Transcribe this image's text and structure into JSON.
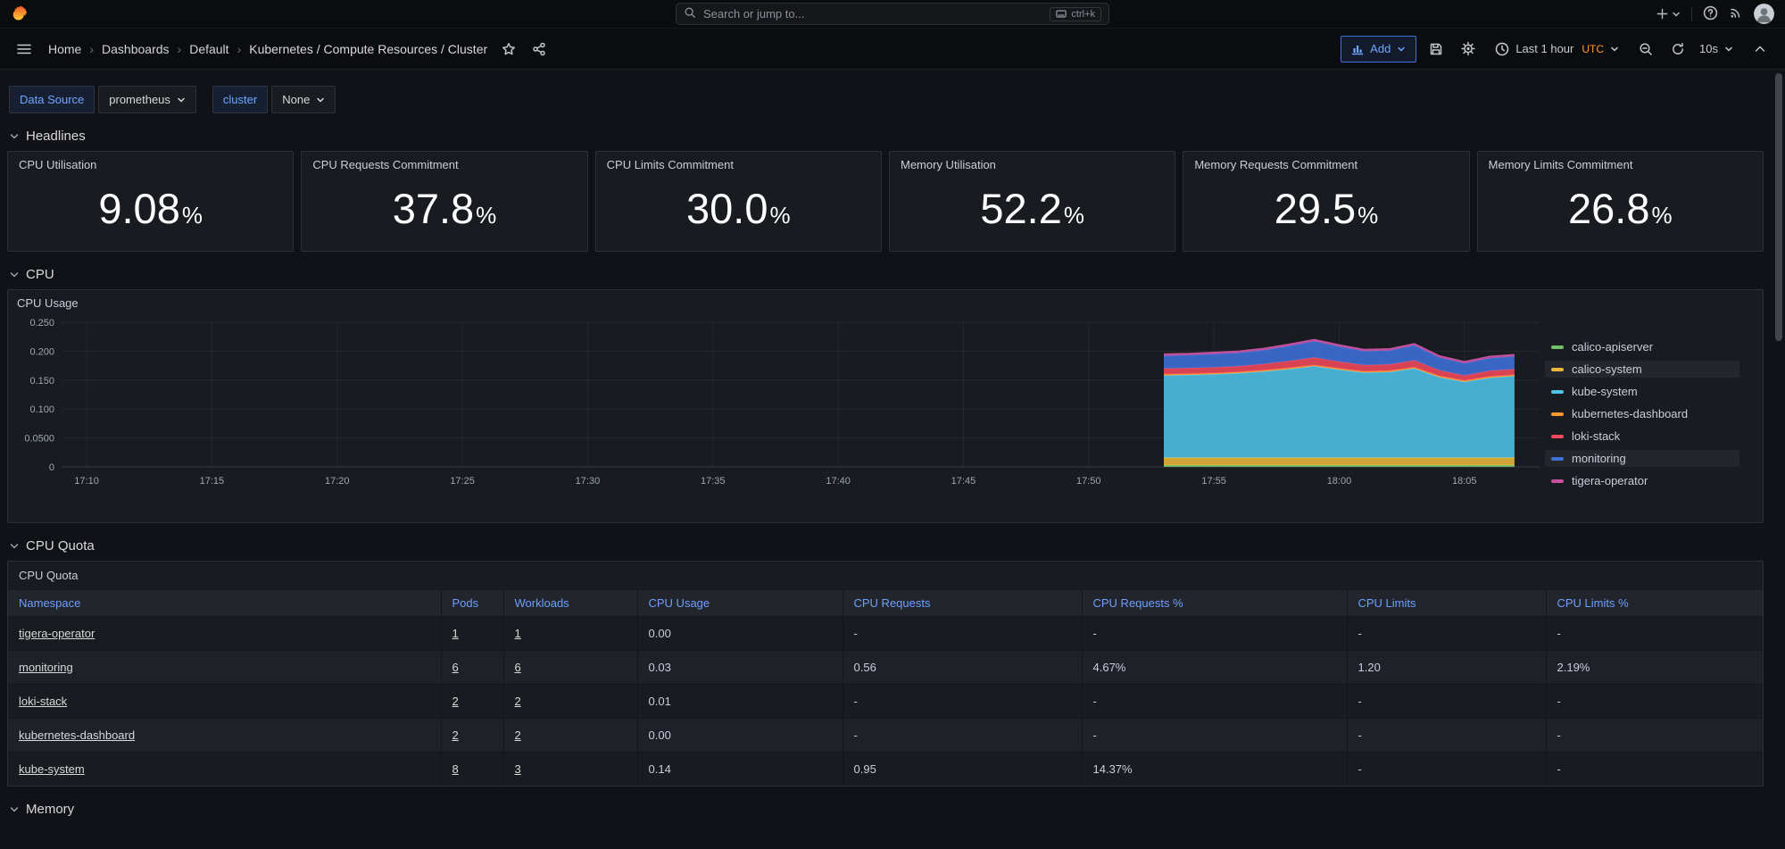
{
  "topbar": {
    "search_placeholder": "Search or jump to...",
    "search_shortcut": "ctrl+k"
  },
  "navbar": {
    "breadcrumbs": [
      "Home",
      "Dashboards",
      "Default",
      "Kubernetes / Compute Resources / Cluster"
    ],
    "separator": "›",
    "add_label": "Add",
    "time_range_label": "Last 1 hour",
    "timezone": "UTC",
    "refresh_interval": "10s"
  },
  "filters": {
    "datasource_label": "Data Source",
    "datasource_value": "prometheus",
    "cluster_label": "cluster",
    "cluster_value": "None"
  },
  "sections": {
    "headlines": "Headlines",
    "cpu": "CPU",
    "cpu_quota": "CPU Quota",
    "memory": "Memory"
  },
  "headlines": {
    "panels": [
      {
        "title": "CPU Utilisation",
        "value": "9.08",
        "suffix": "%"
      },
      {
        "title": "CPU Requests Commitment",
        "value": "37.8",
        "suffix": "%"
      },
      {
        "title": "CPU Limits Commitment",
        "value": "30.0",
        "suffix": "%"
      },
      {
        "title": "Memory Utilisation",
        "value": "52.2",
        "suffix": "%"
      },
      {
        "title": "Memory Requests Commitment",
        "value": "29.5",
        "suffix": "%"
      },
      {
        "title": "Memory Limits Commitment",
        "value": "26.8",
        "suffix": "%"
      }
    ]
  },
  "cpu_usage": {
    "title": "CPU Usage",
    "chart_data": {
      "type": "area",
      "stacked": true,
      "grid": true,
      "legend_position": "right",
      "x": [
        "17:53",
        "17:54",
        "17:55",
        "17:56",
        "17:57",
        "17:58",
        "17:59",
        "18:00",
        "18:01",
        "18:02",
        "18:03",
        "18:04",
        "18:05",
        "18:06",
        "18:07"
      ],
      "series": [
        {
          "name": "calico-apiserver",
          "color": "#73bf69",
          "highlighted": false,
          "values": [
            0.003,
            0.003,
            0.003,
            0.003,
            0.003,
            0.003,
            0.003,
            0.003,
            0.003,
            0.003,
            0.003,
            0.003,
            0.003,
            0.003,
            0.003
          ]
        },
        {
          "name": "calico-system",
          "color": "#eab839",
          "highlighted": true,
          "values": [
            0.013,
            0.013,
            0.013,
            0.013,
            0.013,
            0.013,
            0.013,
            0.013,
            0.013,
            0.013,
            0.013,
            0.013,
            0.013,
            0.013,
            0.013
          ]
        },
        {
          "name": "kube-system",
          "color": "#4fc3e8",
          "highlighted": false,
          "values": [
            0.142,
            0.143,
            0.144,
            0.146,
            0.149,
            0.153,
            0.158,
            0.152,
            0.147,
            0.148,
            0.154,
            0.139,
            0.131,
            0.138,
            0.141
          ]
        },
        {
          "name": "kubernetes-dashboard",
          "color": "#ff9830",
          "highlighted": false,
          "values": [
            0.002,
            0.002,
            0.002,
            0.002,
            0.002,
            0.002,
            0.002,
            0.002,
            0.002,
            0.002,
            0.002,
            0.002,
            0.002,
            0.002,
            0.002
          ]
        },
        {
          "name": "loki-stack",
          "color": "#f2495c",
          "highlighted": false,
          "values": [
            0.01,
            0.01,
            0.01,
            0.01,
            0.011,
            0.012,
            0.013,
            0.012,
            0.011,
            0.011,
            0.012,
            0.01,
            0.009,
            0.01,
            0.01
          ]
        },
        {
          "name": "monitoring",
          "color": "#3d71d9",
          "highlighted": true,
          "values": [
            0.022,
            0.022,
            0.023,
            0.023,
            0.024,
            0.026,
            0.028,
            0.026,
            0.024,
            0.024,
            0.026,
            0.022,
            0.021,
            0.022,
            0.022
          ]
        },
        {
          "name": "tigera-operator",
          "color": "#c7519e",
          "highlighted": false,
          "values": [
            0.003,
            0.003,
            0.003,
            0.003,
            0.003,
            0.003,
            0.003,
            0.003,
            0.003,
            0.003,
            0.003,
            0.003,
            0.003,
            0.003,
            0.003
          ]
        }
      ],
      "ylim": [
        0,
        0.25
      ],
      "yticks": [
        "0",
        "0.0500",
        "0.100",
        "0.150",
        "0.200",
        "0.250"
      ],
      "xlim": [
        "17:09",
        "18:08"
      ],
      "xticks": [
        "17:10",
        "17:15",
        "17:20",
        "17:25",
        "17:30",
        "17:35",
        "17:40",
        "17:45",
        "17:50",
        "17:55",
        "18:00",
        "18:05"
      ]
    }
  },
  "cpu_quota": {
    "title": "CPU Quota",
    "columns": [
      "Namespace",
      "Pods",
      "Workloads",
      "CPU Usage",
      "CPU Requests",
      "CPU Requests %",
      "CPU Limits",
      "CPU Limits %"
    ],
    "link_columns": [
      0,
      1,
      2
    ],
    "rows": [
      [
        "tigera-operator",
        "1",
        "1",
        "0.00",
        "-",
        "-",
        "-",
        "-"
      ],
      [
        "monitoring",
        "6",
        "6",
        "0.03",
        "0.56",
        "4.67%",
        "1.20",
        "2.19%"
      ],
      [
        "loki-stack",
        "2",
        "2",
        "0.01",
        "-",
        "-",
        "-",
        "-"
      ],
      [
        "kubernetes-dashboard",
        "2",
        "2",
        "0.00",
        "-",
        "-",
        "-",
        "-"
      ],
      [
        "kube-system",
        "8",
        "3",
        "0.14",
        "0.95",
        "14.37%",
        "-",
        "-"
      ]
    ]
  },
  "colors": {
    "accent_blue": "#3d71d9",
    "link_blue": "#6e9fff",
    "timezone_orange": "#ff9830",
    "panel_bg": "#181b1f",
    "page_bg": "#111217"
  }
}
